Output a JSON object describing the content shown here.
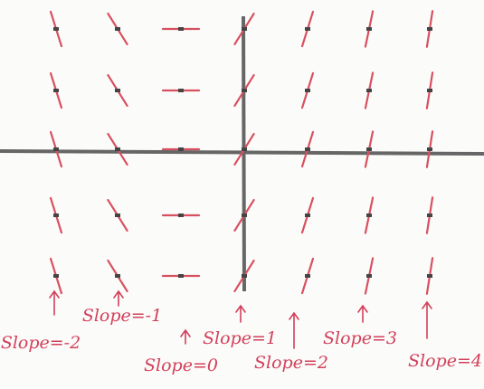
{
  "columns": [
    {
      "label": "Slope=-2",
      "slope": -2
    },
    {
      "label": "Slope=-1",
      "slope": -1
    },
    {
      "label": "Slope=0",
      "slope": 0
    },
    {
      "label": "Slope=1",
      "slope": 1
    },
    {
      "label": "Slope=2",
      "slope": 2
    },
    {
      "label": "Slope=3",
      "slope": 3
    },
    {
      "label": "Slope=4",
      "slope": 4
    }
  ]
}
